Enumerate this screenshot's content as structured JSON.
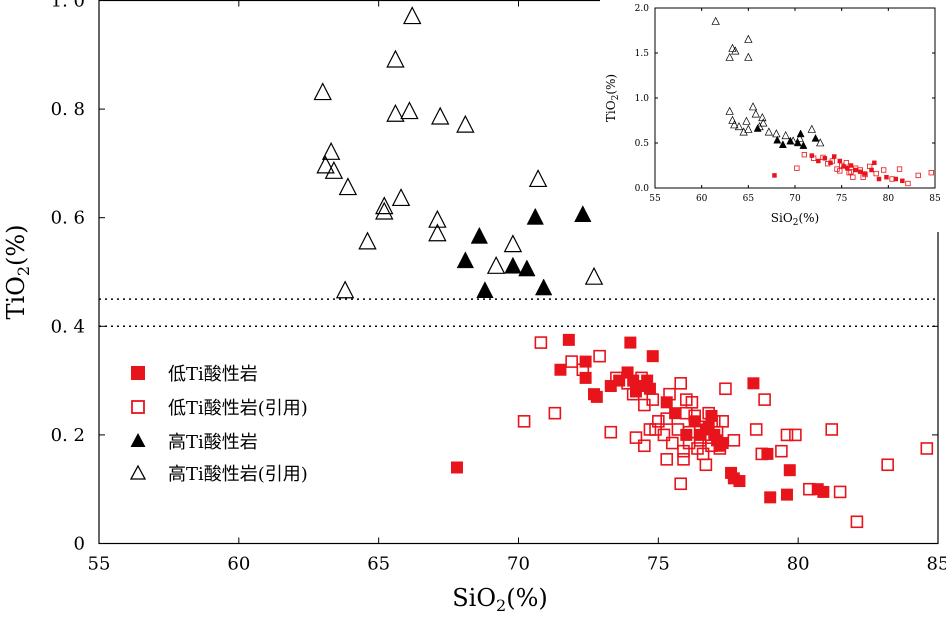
{
  "colors": {
    "red": "#e8141c",
    "black": "#000000",
    "axis": "#000000"
  },
  "chart_data": [
    {
      "type": "scatter",
      "name": "main",
      "xlabel": "SiO2(%)",
      "ylabel": "TiO2(%)",
      "xlim": [
        55,
        85
      ],
      "ylim": [
        0,
        1.0
      ],
      "xticks": [
        55,
        60,
        65,
        70,
        75,
        80,
        85
      ],
      "xtick_labels": [
        "55",
        "60",
        "65",
        "70",
        "75",
        "80",
        "85"
      ],
      "yticks": [
        0,
        0.2,
        0.4,
        0.6,
        0.8,
        1.0
      ],
      "ytick_labels": [
        "0",
        "0. 2",
        "0. 4",
        "0. 6",
        "0. 8",
        "1. 0"
      ],
      "reference_lines": [
        {
          "axis": "y",
          "value": 0.45,
          "style": "dotted"
        },
        {
          "axis": "y",
          "value": 0.4,
          "style": "dotted"
        }
      ],
      "legend": {
        "position": "lower-left",
        "entries": [
          {
            "label": "低Ti酸性岩",
            "series": "low_ti"
          },
          {
            "label": "低Ti酸性岩(引用)",
            "series": "low_ti_cited"
          },
          {
            "label": "高Ti酸性岩",
            "series": "high_ti"
          },
          {
            "label": "高Ti酸性岩(引用)",
            "series": "high_ti_cited"
          }
        ]
      },
      "series": [
        {
          "key": "low_ti",
          "name": "低Ti酸性岩",
          "marker": "square",
          "filled": true,
          "color": "#e8141c",
          "points": [
            [
              67.8,
              0.14
            ],
            [
              71.8,
              0.375
            ],
            [
              71.5,
              0.32
            ],
            [
              72.4,
              0.335
            ],
            [
              72.4,
              0.305
            ],
            [
              72.7,
              0.275
            ],
            [
              72.8,
              0.27
            ],
            [
              73.3,
              0.29
            ],
            [
              73.6,
              0.3
            ],
            [
              73.9,
              0.315
            ],
            [
              74.0,
              0.37
            ],
            [
              74.1,
              0.3
            ],
            [
              74.2,
              0.28
            ],
            [
              74.3,
              0.29
            ],
            [
              74.6,
              0.3
            ],
            [
              74.7,
              0.285
            ],
            [
              74.8,
              0.345
            ],
            [
              75.3,
              0.26
            ],
            [
              75.6,
              0.24
            ],
            [
              76.0,
              0.2
            ],
            [
              76.3,
              0.225
            ],
            [
              76.5,
              0.2
            ],
            [
              76.7,
              0.21
            ],
            [
              76.8,
              0.215
            ],
            [
              76.9,
              0.235
            ],
            [
              77.0,
              0.2
            ],
            [
              77.1,
              0.19
            ],
            [
              77.2,
              0.18
            ],
            [
              77.3,
              0.185
            ],
            [
              77.6,
              0.13
            ],
            [
              77.7,
              0.12
            ],
            [
              77.9,
              0.115
            ],
            [
              78.4,
              0.295
            ],
            [
              78.9,
              0.165
            ],
            [
              79.0,
              0.085
            ],
            [
              79.6,
              0.09
            ],
            [
              79.7,
              0.135
            ],
            [
              80.7,
              0.1
            ],
            [
              80.9,
              0.095
            ]
          ]
        },
        {
          "key": "low_ti_cited",
          "name": "低Ti酸性岩(引用)",
          "marker": "square",
          "filled": false,
          "color": "#e8141c",
          "points": [
            [
              70.2,
              0.225
            ],
            [
              70.8,
              0.37
            ],
            [
              71.3,
              0.24
            ],
            [
              71.9,
              0.335
            ],
            [
              72.3,
              0.32
            ],
            [
              72.9,
              0.345
            ],
            [
              73.3,
              0.205
            ],
            [
              73.5,
              0.305
            ],
            [
              73.9,
              0.295
            ],
            [
              74.1,
              0.275
            ],
            [
              74.2,
              0.195
            ],
            [
              74.4,
              0.305
            ],
            [
              74.5,
              0.255
            ],
            [
              74.5,
              0.18
            ],
            [
              74.7,
              0.21
            ],
            [
              74.8,
              0.265
            ],
            [
              74.9,
              0.21
            ],
            [
              75.0,
              0.225
            ],
            [
              75.2,
              0.2
            ],
            [
              75.3,
              0.23
            ],
            [
              75.3,
              0.155
            ],
            [
              75.4,
              0.275
            ],
            [
              75.5,
              0.185
            ],
            [
              75.7,
              0.21
            ],
            [
              75.8,
              0.295
            ],
            [
              75.8,
              0.11
            ],
            [
              75.9,
              0.17
            ],
            [
              75.9,
              0.155
            ],
            [
              76.0,
              0.265
            ],
            [
              76.0,
              0.24
            ],
            [
              76.1,
              0.205
            ],
            [
              76.1,
              0.185
            ],
            [
              76.2,
              0.26
            ],
            [
              76.3,
              0.235
            ],
            [
              76.4,
              0.175
            ],
            [
              76.5,
              0.215
            ],
            [
              76.5,
              0.19
            ],
            [
              76.6,
              0.165
            ],
            [
              76.7,
              0.145
            ],
            [
              76.8,
              0.195
            ],
            [
              76.8,
              0.24
            ],
            [
              76.9,
              0.18
            ],
            [
              77.0,
              0.225
            ],
            [
              77.1,
              0.205
            ],
            [
              77.2,
              0.175
            ],
            [
              77.3,
              0.225
            ],
            [
              77.4,
              0.285
            ],
            [
              77.7,
              0.19
            ],
            [
              78.5,
              0.21
            ],
            [
              78.7,
              0.165
            ],
            [
              78.8,
              0.265
            ],
            [
              79.4,
              0.17
            ],
            [
              79.6,
              0.2
            ],
            [
              79.9,
              0.2
            ],
            [
              80.4,
              0.1
            ],
            [
              81.2,
              0.21
            ],
            [
              81.5,
              0.095
            ],
            [
              82.1,
              0.04
            ],
            [
              83.2,
              0.145
            ],
            [
              84.6,
              0.175
            ]
          ]
        },
        {
          "key": "high_ti",
          "name": "高Ti酸性岩",
          "marker": "triangle",
          "filled": true,
          "color": "#000000",
          "points": [
            [
              68.1,
              0.52
            ],
            [
              68.6,
              0.565
            ],
            [
              68.8,
              0.465
            ],
            [
              69.8,
              0.51
            ],
            [
              70.3,
              0.505
            ],
            [
              70.6,
              0.6
            ],
            [
              70.9,
              0.47
            ],
            [
              72.3,
              0.605
            ]
          ]
        },
        {
          "key": "high_ti_cited",
          "name": "高Ti酸性岩(引用)",
          "marker": "triangle",
          "filled": false,
          "color": "#000000",
          "points": [
            [
              63.0,
              0.83
            ],
            [
              63.1,
              0.695
            ],
            [
              63.3,
              0.72
            ],
            [
              63.4,
              0.685
            ],
            [
              63.8,
              0.465
            ],
            [
              63.9,
              0.655
            ],
            [
              64.6,
              0.555
            ],
            [
              65.2,
              0.62
            ],
            [
              65.2,
              0.61
            ],
            [
              65.6,
              0.89
            ],
            [
              65.6,
              0.79
            ],
            [
              65.8,
              0.635
            ],
            [
              66.1,
              0.795
            ],
            [
              66.2,
              0.97
            ],
            [
              67.1,
              0.595
            ],
            [
              67.1,
              0.57
            ],
            [
              67.2,
              0.785
            ],
            [
              68.1,
              0.77
            ],
            [
              69.2,
              0.51
            ],
            [
              69.8,
              0.55
            ],
            [
              70.7,
              0.67
            ],
            [
              72.7,
              0.49
            ]
          ]
        }
      ]
    },
    {
      "type": "scatter",
      "name": "inset",
      "xlabel": "SiO2(%)",
      "ylabel": "TiO2(%)",
      "xlim": [
        55,
        85
      ],
      "ylim": [
        0,
        2.0
      ],
      "xticks": [
        55,
        60,
        65,
        70,
        75,
        80,
        85
      ],
      "xtick_labels": [
        "55",
        "60",
        "65",
        "70",
        "75",
        "80",
        "85"
      ],
      "yticks": [
        0,
        0.5,
        1.0,
        1.5,
        2.0
      ],
      "ytick_labels": [
        "0.0",
        "0.5",
        "1.0",
        "1.5",
        "2.0"
      ],
      "series": [
        {
          "key": "inset_high_ti_cited",
          "marker": "triangle",
          "filled": false,
          "color": "#000000",
          "points": [
            [
              61.5,
              1.85
            ],
            [
              63.0,
              1.45
            ],
            [
              63.3,
              1.55
            ],
            [
              63.6,
              1.52
            ],
            [
              65.0,
              1.65
            ],
            [
              65.0,
              1.45
            ],
            [
              63.0,
              0.85
            ],
            [
              63.3,
              0.75
            ],
            [
              63.5,
              0.7
            ],
            [
              64.0,
              0.68
            ],
            [
              65.5,
              0.9
            ],
            [
              65.8,
              0.82
            ],
            [
              66.5,
              0.78
            ],
            [
              64.5,
              0.62
            ],
            [
              65.0,
              0.65
            ],
            [
              66.2,
              0.68
            ],
            [
              67.2,
              0.62
            ],
            [
              68.0,
              0.6
            ],
            [
              69.0,
              0.58
            ],
            [
              70.5,
              0.55
            ],
            [
              71.8,
              0.65
            ],
            [
              72.7,
              0.5
            ],
            [
              69.8,
              0.52
            ],
            [
              66.6,
              0.72
            ],
            [
              64.8,
              0.74
            ]
          ]
        },
        {
          "key": "inset_high_ti",
          "marker": "triangle",
          "filled": true,
          "color": "#000000",
          "points": [
            [
              66.0,
              0.66
            ],
            [
              68.7,
              0.48
            ],
            [
              69.5,
              0.52
            ],
            [
              70.3,
              0.5
            ],
            [
              70.9,
              0.47
            ],
            [
              72.2,
              0.55
            ],
            [
              68.1,
              0.53
            ],
            [
              70.6,
              0.6
            ]
          ]
        },
        {
          "key": "inset_low_ti",
          "marker": "square",
          "filled": true,
          "color": "#e8141c",
          "points": [
            [
              67.8,
              0.14
            ],
            [
              71.8,
              0.36
            ],
            [
              72.5,
              0.3
            ],
            [
              73.2,
              0.33
            ],
            [
              73.8,
              0.28
            ],
            [
              74.2,
              0.35
            ],
            [
              74.8,
              0.3
            ],
            [
              75.2,
              0.24
            ],
            [
              75.6,
              0.22
            ],
            [
              76.0,
              0.25
            ],
            [
              76.5,
              0.2
            ],
            [
              77.0,
              0.18
            ],
            [
              77.5,
              0.16
            ],
            [
              78.2,
              0.2
            ],
            [
              79.0,
              0.1
            ],
            [
              79.8,
              0.12
            ],
            [
              80.8,
              0.1
            ],
            [
              81.5,
              0.08
            ],
            [
              78.5,
              0.28
            ]
          ]
        },
        {
          "key": "inset_low_ti_cited",
          "marker": "square",
          "filled": false,
          "color": "#e8141c",
          "points": [
            [
              70.2,
              0.22
            ],
            [
              71.0,
              0.37
            ],
            [
              72.0,
              0.33
            ],
            [
              73.0,
              0.34
            ],
            [
              73.5,
              0.27
            ],
            [
              74.0,
              0.3
            ],
            [
              74.5,
              0.21
            ],
            [
              75.0,
              0.25
            ],
            [
              75.5,
              0.28
            ],
            [
              76.0,
              0.18
            ],
            [
              76.5,
              0.22
            ],
            [
              77.0,
              0.2
            ],
            [
              77.5,
              0.15
            ],
            [
              78.0,
              0.24
            ],
            [
              78.7,
              0.16
            ],
            [
              79.5,
              0.2
            ],
            [
              80.4,
              0.1
            ],
            [
              81.2,
              0.21
            ],
            [
              82.1,
              0.05
            ],
            [
              83.2,
              0.14
            ],
            [
              84.6,
              0.17
            ],
            [
              76.2,
              0.12
            ],
            [
              75.8,
              0.17
            ],
            [
              77.3,
              0.12
            ],
            [
              74.8,
              0.19
            ]
          ]
        }
      ]
    }
  ]
}
